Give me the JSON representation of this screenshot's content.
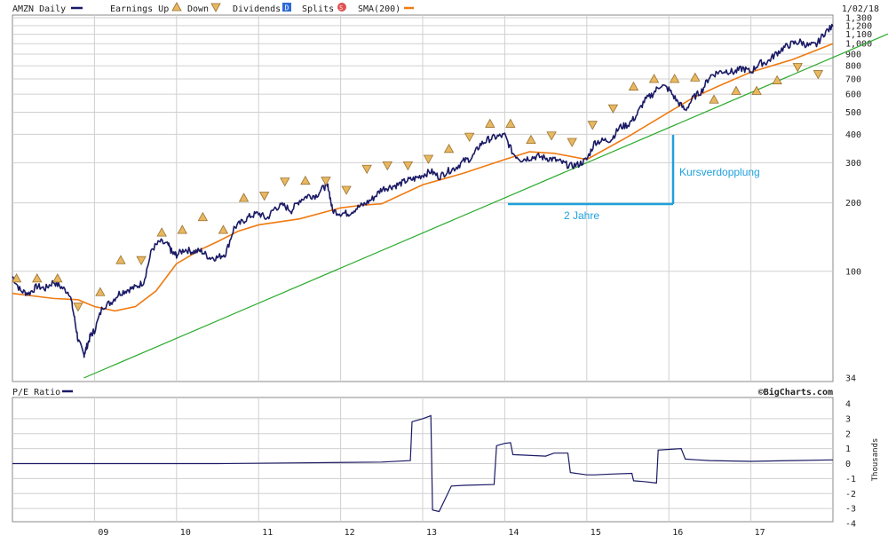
{
  "header": {
    "symbol": "AMZN Daily",
    "legend": [
      {
        "label": "Earnings Up",
        "icon": "earnings-up-icon"
      },
      {
        "label": "Down",
        "icon": "earnings-down-icon"
      },
      {
        "label": "Dividends",
        "icon": "dividends-icon",
        "glyph": "D"
      },
      {
        "label": "Splits",
        "icon": "splits-icon",
        "glyph": "S"
      },
      {
        "label": "SMA(200)",
        "icon": "sma-line-icon"
      }
    ],
    "date": "1/02/18"
  },
  "colors": {
    "price": "#1a1a66",
    "sma": "#f07a10",
    "trend": "#2aaa2a",
    "annotation": "#1ea0dc",
    "grid": "#d0d0d0",
    "earnings_fill": "#e8b860",
    "dividends": "#2d6ad6",
    "splits": "#e05050"
  },
  "pe": {
    "title": "P/E Ratio",
    "credit": "©BigCharts.com",
    "ylabel": "Thousands"
  },
  "annotations": {
    "doubling": "Kursverdopplung",
    "two_years": "2 Jahre"
  },
  "chart_data": [
    {
      "type": "line",
      "title": "AMZN Daily",
      "yscale": "log",
      "ylim": [
        34,
        1300
      ],
      "xlim": [
        2008.0,
        2018.0
      ],
      "grid": true,
      "y_ticks": [
        "1,300",
        "1,200",
        "1,100",
        "1,000",
        "900",
        "800",
        "700",
        "600",
        "500",
        "400",
        "300",
        "200",
        "100",
        "34"
      ],
      "x_ticks": [
        "09",
        "10",
        "11",
        "12",
        "13",
        "14",
        "15",
        "16",
        "17"
      ],
      "series": [
        {
          "name": "AMZN",
          "x": [
            2008.0,
            2008.1,
            2008.2,
            2008.3,
            2008.4,
            2008.5,
            2008.6,
            2008.7,
            2008.75,
            2008.8,
            2008.87,
            2008.9,
            2008.95,
            2009.0,
            2009.1,
            2009.2,
            2009.3,
            2009.4,
            2009.5,
            2009.6,
            2009.7,
            2009.8,
            2009.9,
            2009.95,
            2010.0,
            2010.1,
            2010.2,
            2010.3,
            2010.4,
            2010.5,
            2010.6,
            2010.7,
            2010.8,
            2010.9,
            2011.0,
            2011.1,
            2011.2,
            2011.3,
            2011.4,
            2011.5,
            2011.6,
            2011.7,
            2011.8,
            2011.85,
            2011.9,
            2012.0,
            2012.1,
            2012.2,
            2012.3,
            2012.4,
            2012.5,
            2012.6,
            2012.7,
            2012.8,
            2012.9,
            2013.0,
            2013.1,
            2013.2,
            2013.3,
            2013.4,
            2013.5,
            2013.6,
            2013.7,
            2013.8,
            2013.9,
            2014.0,
            2014.1,
            2014.2,
            2014.3,
            2014.4,
            2014.5,
            2014.6,
            2014.7,
            2014.8,
            2014.9,
            2015.0,
            2015.1,
            2015.2,
            2015.3,
            2015.4,
            2015.5,
            2015.6,
            2015.7,
            2015.8,
            2015.9,
            2016.0,
            2016.1,
            2016.2,
            2016.3,
            2016.4,
            2016.5,
            2016.6,
            2016.7,
            2016.8,
            2016.9,
            2017.0,
            2017.1,
            2017.2,
            2017.3,
            2017.4,
            2017.5,
            2017.6,
            2017.7,
            2017.8,
            2017.9,
            2018.0
          ],
          "y": [
            95,
            82,
            80,
            86,
            84,
            90,
            85,
            80,
            64,
            50,
            43,
            46,
            52,
            55,
            70,
            73,
            80,
            83,
            85,
            90,
            125,
            135,
            130,
            120,
            118,
            125,
            122,
            123,
            115,
            115,
            120,
            155,
            165,
            175,
            180,
            170,
            190,
            195,
            185,
            205,
            215,
            215,
            235,
            235,
            185,
            180,
            180,
            190,
            198,
            210,
            230,
            235,
            240,
            250,
            255,
            265,
            275,
            260,
            275,
            285,
            305,
            315,
            360,
            380,
            390,
            395,
            330,
            310,
            315,
            320,
            315,
            310,
            300,
            290,
            295,
            310,
            370,
            375,
            380,
            430,
            440,
            480,
            560,
            600,
            660,
            630,
            560,
            510,
            580,
            620,
            720,
            750,
            760,
            750,
            780,
            750,
            820,
            830,
            900,
            960,
            1000,
            1020,
            980,
            990,
            1120,
            1190
          ]
        },
        {
          "name": "SMA(200)",
          "x": [
            2008.0,
            2008.5,
            2008.8,
            2009.0,
            2009.25,
            2009.5,
            2009.75,
            2010.0,
            2010.3,
            2010.5,
            2010.75,
            2011.0,
            2011.5,
            2012.0,
            2012.25,
            2012.5,
            2013.0,
            2013.5,
            2014.0,
            2014.3,
            2014.6,
            2015.0,
            2015.5,
            2016.0,
            2016.3,
            2016.6,
            2017.0,
            2017.5,
            2018.0
          ],
          "y": [
            80,
            76,
            75,
            70,
            67,
            70,
            82,
            108,
            125,
            135,
            150,
            160,
            170,
            190,
            195,
            198,
            240,
            270,
            310,
            335,
            330,
            310,
            390,
            500,
            580,
            650,
            750,
            850,
            1000
          ]
        },
        {
          "name": "Trend",
          "x": [
            2008.87,
            2018.0
          ],
          "y": [
            34,
            870
          ]
        }
      ],
      "earnings_markers": [
        {
          "x": 2008.05,
          "y": 93,
          "dir": "up"
        },
        {
          "x": 2008.3,
          "y": 93,
          "dir": "up"
        },
        {
          "x": 2008.55,
          "y": 93,
          "dir": "up"
        },
        {
          "x": 2008.8,
          "y": 70,
          "dir": "down"
        },
        {
          "x": 2009.07,
          "y": 81,
          "dir": "up"
        },
        {
          "x": 2009.32,
          "y": 112,
          "dir": "up"
        },
        {
          "x": 2009.57,
          "y": 112,
          "dir": "down"
        },
        {
          "x": 2009.82,
          "y": 148,
          "dir": "up"
        },
        {
          "x": 2010.07,
          "y": 152,
          "dir": "up"
        },
        {
          "x": 2010.32,
          "y": 173,
          "dir": "up"
        },
        {
          "x": 2010.57,
          "y": 152,
          "dir": "up"
        },
        {
          "x": 2010.82,
          "y": 210,
          "dir": "up"
        },
        {
          "x": 2011.07,
          "y": 215,
          "dir": "down"
        },
        {
          "x": 2011.32,
          "y": 248,
          "dir": "down"
        },
        {
          "x": 2011.57,
          "y": 250,
          "dir": "up"
        },
        {
          "x": 2011.82,
          "y": 250,
          "dir": "down"
        },
        {
          "x": 2012.07,
          "y": 228,
          "dir": "down"
        },
        {
          "x": 2012.32,
          "y": 282,
          "dir": "down"
        },
        {
          "x": 2012.57,
          "y": 292,
          "dir": "down"
        },
        {
          "x": 2012.82,
          "y": 292,
          "dir": "down"
        },
        {
          "x": 2013.07,
          "y": 312,
          "dir": "down"
        },
        {
          "x": 2013.32,
          "y": 345,
          "dir": "up"
        },
        {
          "x": 2013.57,
          "y": 390,
          "dir": "down"
        },
        {
          "x": 2013.82,
          "y": 445,
          "dir": "up"
        },
        {
          "x": 2014.07,
          "y": 445,
          "dir": "up"
        },
        {
          "x": 2014.32,
          "y": 378,
          "dir": "up"
        },
        {
          "x": 2014.57,
          "y": 395,
          "dir": "down"
        },
        {
          "x": 2014.82,
          "y": 370,
          "dir": "down"
        },
        {
          "x": 2015.07,
          "y": 440,
          "dir": "down"
        },
        {
          "x": 2015.32,
          "y": 520,
          "dir": "down"
        },
        {
          "x": 2015.57,
          "y": 648,
          "dir": "up"
        },
        {
          "x": 2015.82,
          "y": 700,
          "dir": "up"
        },
        {
          "x": 2016.07,
          "y": 700,
          "dir": "up"
        },
        {
          "x": 2016.32,
          "y": 710,
          "dir": "up"
        },
        {
          "x": 2016.55,
          "y": 568,
          "dir": "up"
        },
        {
          "x": 2016.82,
          "y": 620,
          "dir": "up"
        },
        {
          "x": 2017.07,
          "y": 620,
          "dir": "up"
        },
        {
          "x": 2017.32,
          "y": 690,
          "dir": "up"
        },
        {
          "x": 2017.57,
          "y": 790,
          "dir": "down"
        },
        {
          "x": 2017.82,
          "y": 735,
          "dir": "down"
        }
      ]
    },
    {
      "type": "line",
      "title": "P/E Ratio",
      "ylabel": "Thousands",
      "ylim": [
        -4,
        4
      ],
      "xlim": [
        2008.0,
        2018.0
      ],
      "grid": true,
      "y_ticks": [
        "4",
        "3",
        "2",
        "1",
        "0",
        "-1",
        "-2",
        "-3",
        "-4"
      ],
      "series": [
        {
          "name": "P/E Ratio",
          "x": [
            2008.0,
            2009.5,
            2010.5,
            2011.5,
            2012.5,
            2012.85,
            2012.87,
            2013.0,
            2013.1,
            2013.12,
            2013.2,
            2013.35,
            2013.5,
            2013.87,
            2013.9,
            2014.0,
            2014.07,
            2014.1,
            2014.5,
            2014.6,
            2014.77,
            2014.8,
            2015.0,
            2015.1,
            2015.3,
            2015.55,
            2015.57,
            2015.7,
            2015.85,
            2015.87,
            2016.0,
            2016.15,
            2016.2,
            2016.35,
            2016.5,
            2017.0,
            2017.5,
            2018.0
          ],
          "y": [
            0.0,
            0.0,
            0.0,
            0.05,
            0.1,
            0.2,
            2.8,
            3.0,
            3.2,
            -3.1,
            -3.2,
            -1.5,
            -1.45,
            -1.4,
            1.2,
            1.35,
            1.4,
            0.6,
            0.5,
            0.7,
            0.7,
            -0.6,
            -0.75,
            -0.75,
            -0.7,
            -0.65,
            -1.15,
            -1.2,
            -1.3,
            0.9,
            0.95,
            1.0,
            0.3,
            0.25,
            0.2,
            0.15,
            0.2,
            0.25
          ]
        }
      ]
    }
  ]
}
